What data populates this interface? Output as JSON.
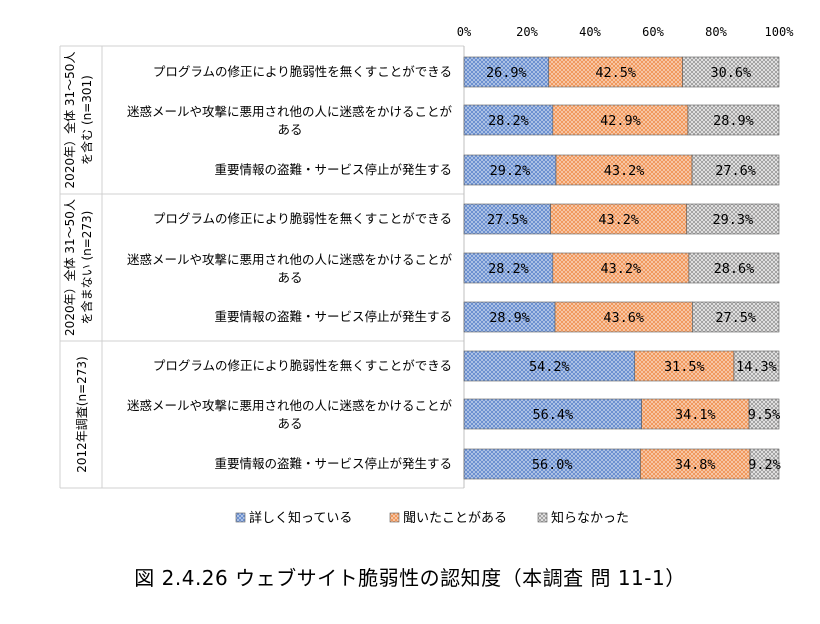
{
  "chart_data": {
    "type": "bar",
    "orientation": "horizontal-stacked-100",
    "xlim": [
      0,
      100
    ],
    "x_ticks": [
      "0%",
      "20%",
      "40%",
      "60%",
      "80%",
      "100%"
    ],
    "legend": [
      "詳しく知っている",
      "聞いたことがある",
      "知らなかった"
    ],
    "colors": [
      "#8eaadb",
      "#f4b183",
      "#bfbfbf"
    ],
    "groups": [
      {
        "label_lines": [
          "2020年）全体 31～50人",
          "を含む (n=301)"
        ],
        "rows": [
          {
            "label_lines": [
              "プログラムの修正により脆弱性を無くすことができる"
            ],
            "values": [
              26.9,
              42.5,
              30.6
            ],
            "labels": [
              "26.9%",
              "42.5%",
              "30.6%"
            ]
          },
          {
            "label_lines": [
              "迷惑メールや攻撃に悪用され他の人に迷惑をかけることが",
              "ある"
            ],
            "values": [
              28.2,
              42.9,
              28.9
            ],
            "labels": [
              "28.2%",
              "42.9%",
              "28.9%"
            ]
          },
          {
            "label_lines": [
              "重要情報の盗難・サービス停止が発生する"
            ],
            "values": [
              29.2,
              43.2,
              27.6
            ],
            "labels": [
              "29.2%",
              "43.2%",
              "27.6%"
            ]
          }
        ]
      },
      {
        "label_lines": [
          "2020年）全体 31～50人",
          "を含まない (n=273)"
        ],
        "rows": [
          {
            "label_lines": [
              "プログラムの修正により脆弱性を無くすことができる"
            ],
            "values": [
              27.5,
              43.2,
              29.3
            ],
            "labels": [
              "27.5%",
              "43.2%",
              "29.3%"
            ]
          },
          {
            "label_lines": [
              "迷惑メールや攻撃に悪用され他の人に迷惑をかけることが",
              "ある"
            ],
            "values": [
              28.2,
              43.2,
              28.6
            ],
            "labels": [
              "28.2%",
              "43.2%",
              "28.6%"
            ]
          },
          {
            "label_lines": [
              "重要情報の盗難・サービス停止が発生する"
            ],
            "values": [
              28.9,
              43.6,
              27.5
            ],
            "labels": [
              "28.9%",
              "43.6%",
              "27.5%"
            ]
          }
        ]
      },
      {
        "label_lines": [
          "2012年調査(n=273)"
        ],
        "rows": [
          {
            "label_lines": [
              "プログラムの修正により脆弱性を無くすことができる"
            ],
            "values": [
              54.2,
              31.5,
              14.3
            ],
            "labels": [
              "54.2%",
              "31.5%",
              "14.3%"
            ]
          },
          {
            "label_lines": [
              "迷惑メールや攻撃に悪用され他の人に迷惑をかけることが",
              "ある"
            ],
            "values": [
              56.4,
              34.1,
              9.5
            ],
            "labels": [
              "56.4%",
              "34.1%",
              "9.5%"
            ]
          },
          {
            "label_lines": [
              "重要情報の盗難・サービス停止が発生する"
            ],
            "values": [
              56.0,
              34.8,
              9.2
            ],
            "labels": [
              "56.0%",
              "34.8%",
              "9.2%"
            ]
          }
        ]
      }
    ]
  },
  "caption": "図 2.4.26 ウェブサイト脆弱性の認知度（本調査 問 11-1）"
}
